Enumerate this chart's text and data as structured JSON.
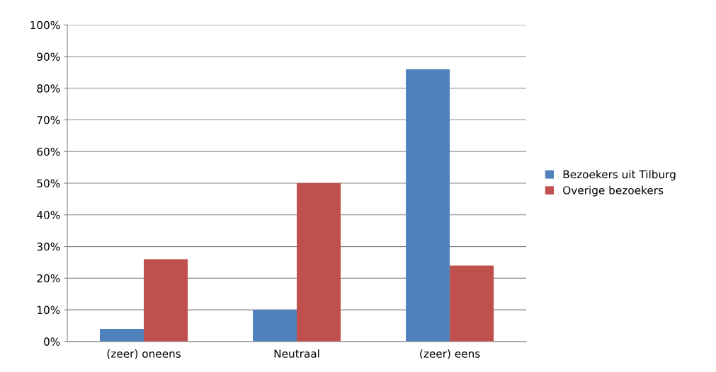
{
  "chart_data": {
    "type": "bar",
    "categories": [
      "(zeer) oneens",
      "Neutraal",
      "(zeer) eens"
    ],
    "series": [
      {
        "name": "Bezoekers uit Tilburg",
        "color": "#4f81bd",
        "values": [
          4,
          10,
          86
        ]
      },
      {
        "name": "Overige bezoekers",
        "color": "#c0504d",
        "values": [
          26,
          50,
          24
        ]
      }
    ],
    "ylim": [
      0,
      100
    ],
    "yticks": [
      {
        "value": 0,
        "label": "0%"
      },
      {
        "value": 10,
        "label": "10%"
      },
      {
        "value": 20,
        "label": "20%"
      },
      {
        "value": 30,
        "label": "30%"
      },
      {
        "value": 40,
        "label": "40%"
      },
      {
        "value": 50,
        "label": "50%"
      },
      {
        "value": 60,
        "label": "60%"
      },
      {
        "value": 70,
        "label": "70%"
      },
      {
        "value": 80,
        "label": "80%"
      },
      {
        "value": 90,
        "label": "90%"
      },
      {
        "value": 100,
        "label": "100%"
      }
    ],
    "grid": "y",
    "legend": "right"
  }
}
